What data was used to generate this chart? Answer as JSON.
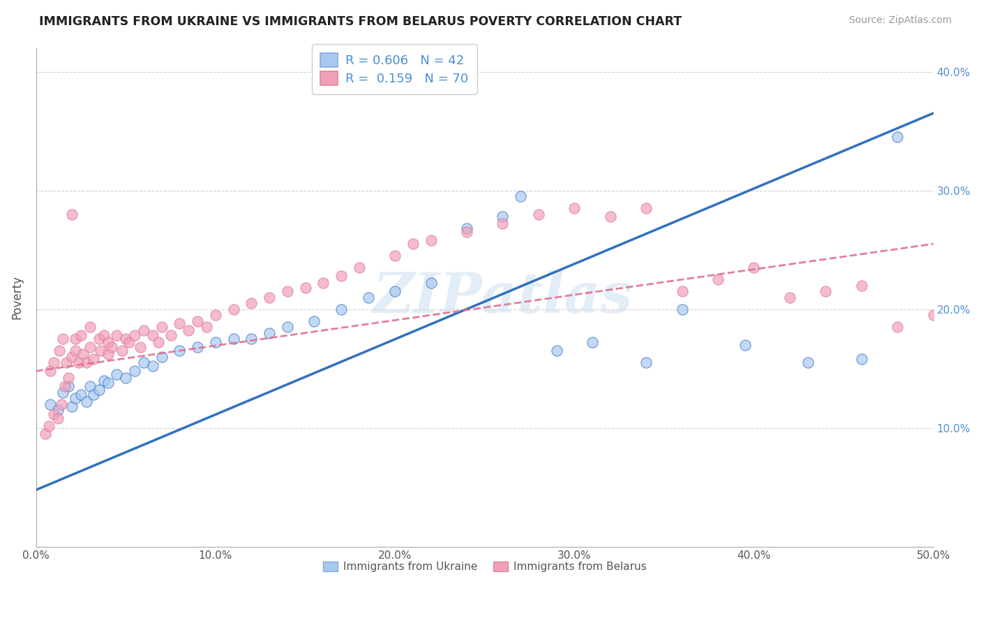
{
  "title": "IMMIGRANTS FROM UKRAINE VS IMMIGRANTS FROM BELARUS POVERTY CORRELATION CHART",
  "source": "Source: ZipAtlas.com",
  "ylabel": "Poverty",
  "xlim": [
    0.0,
    0.5
  ],
  "ylim": [
    0.0,
    0.42
  ],
  "ukraine_R": 0.606,
  "ukraine_N": 42,
  "belarus_R": 0.159,
  "belarus_N": 70,
  "ukraine_color": "#A8C8F0",
  "belarus_color": "#F0A0B8",
  "ukraine_line_color": "#3070C0",
  "belarus_line_color": "#E07090",
  "ukraine_line_x0": 0.0,
  "ukraine_line_y0": 0.048,
  "ukraine_line_x1": 0.5,
  "ukraine_line_y1": 0.365,
  "belarus_line_x0": 0.0,
  "belarus_line_y0": 0.148,
  "belarus_line_x1": 0.5,
  "belarus_line_y1": 0.255,
  "watermark": "ZIPatlas",
  "ukraine_scatter_x": [
    0.008,
    0.012,
    0.015,
    0.018,
    0.02,
    0.022,
    0.025,
    0.028,
    0.03,
    0.032,
    0.035,
    0.038,
    0.04,
    0.045,
    0.05,
    0.055,
    0.06,
    0.065,
    0.07,
    0.08,
    0.09,
    0.1,
    0.11,
    0.12,
    0.13,
    0.14,
    0.155,
    0.17,
    0.185,
    0.2,
    0.22,
    0.24,
    0.26,
    0.27,
    0.29,
    0.31,
    0.34,
    0.36,
    0.395,
    0.43,
    0.46,
    0.48
  ],
  "ukraine_scatter_y": [
    0.12,
    0.115,
    0.13,
    0.135,
    0.118,
    0.125,
    0.128,
    0.122,
    0.135,
    0.128,
    0.132,
    0.14,
    0.138,
    0.145,
    0.142,
    0.148,
    0.155,
    0.152,
    0.16,
    0.165,
    0.168,
    0.172,
    0.175,
    0.175,
    0.18,
    0.185,
    0.19,
    0.2,
    0.21,
    0.215,
    0.222,
    0.268,
    0.278,
    0.295,
    0.165,
    0.172,
    0.155,
    0.2,
    0.17,
    0.155,
    0.158,
    0.345
  ],
  "belarus_scatter_x": [
    0.005,
    0.007,
    0.008,
    0.01,
    0.01,
    0.012,
    0.013,
    0.014,
    0.015,
    0.016,
    0.017,
    0.018,
    0.02,
    0.02,
    0.022,
    0.022,
    0.024,
    0.025,
    0.026,
    0.028,
    0.03,
    0.03,
    0.032,
    0.035,
    0.036,
    0.038,
    0.04,
    0.04,
    0.042,
    0.045,
    0.048,
    0.05,
    0.052,
    0.055,
    0.058,
    0.06,
    0.065,
    0.068,
    0.07,
    0.075,
    0.08,
    0.085,
    0.09,
    0.095,
    0.1,
    0.11,
    0.12,
    0.13,
    0.14,
    0.15,
    0.16,
    0.17,
    0.18,
    0.2,
    0.21,
    0.22,
    0.24,
    0.26,
    0.28,
    0.3,
    0.32,
    0.34,
    0.36,
    0.38,
    0.4,
    0.42,
    0.44,
    0.46,
    0.48,
    0.5
  ],
  "belarus_scatter_y": [
    0.095,
    0.102,
    0.148,
    0.112,
    0.155,
    0.108,
    0.165,
    0.12,
    0.175,
    0.135,
    0.155,
    0.142,
    0.28,
    0.16,
    0.175,
    0.165,
    0.155,
    0.178,
    0.162,
    0.155,
    0.168,
    0.185,
    0.158,
    0.175,
    0.165,
    0.178,
    0.162,
    0.172,
    0.168,
    0.178,
    0.165,
    0.175,
    0.172,
    0.178,
    0.168,
    0.182,
    0.178,
    0.172,
    0.185,
    0.178,
    0.188,
    0.182,
    0.19,
    0.185,
    0.195,
    0.2,
    0.205,
    0.21,
    0.215,
    0.218,
    0.222,
    0.228,
    0.235,
    0.245,
    0.255,
    0.258,
    0.265,
    0.272,
    0.28,
    0.285,
    0.278,
    0.285,
    0.215,
    0.225,
    0.235,
    0.21,
    0.215,
    0.22,
    0.185,
    0.195
  ]
}
